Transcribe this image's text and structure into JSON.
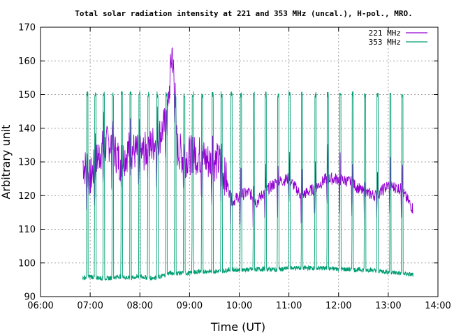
{
  "chart_data": {
    "type": "line",
    "title": "Total solar radiation intensity at 221 and 353 MHz (uncal.), H-pol., MRO.",
    "xlabel": "Time (UT)",
    "ylabel": "Arbitrary unit",
    "x_range_hours": [
      6,
      14
    ],
    "ylim": [
      90,
      170
    ],
    "x_ticks": [
      "06:00",
      "07:00",
      "08:00",
      "09:00",
      "10:00",
      "11:00",
      "12:00",
      "13:00",
      "14:00"
    ],
    "y_ticks": [
      "90",
      "100",
      "110",
      "120",
      "130",
      "140",
      "150",
      "160",
      "170"
    ],
    "grid": true,
    "legend_position": "top-right",
    "series": [
      {
        "name": "221 MHz",
        "color": "#9400d3",
        "x_hours": [
          6.85,
          7.0,
          7.2,
          7.4,
          7.6,
          7.8,
          8.0,
          8.2,
          8.4,
          8.55,
          8.65,
          8.75,
          8.9,
          9.0,
          9.2,
          9.4,
          9.6,
          9.75,
          9.85,
          10.0,
          10.2,
          10.35,
          10.5,
          10.75,
          11.0,
          11.25,
          11.5,
          11.75,
          12.0,
          12.25,
          12.5,
          12.75,
          13.0,
          13.25,
          13.5
        ],
        "values": [
          130,
          125,
          133,
          136,
          130,
          134,
          132,
          134,
          138,
          142,
          164,
          134,
          131,
          132,
          132,
          130,
          130,
          124,
          118,
          120,
          121,
          118,
          121,
          124,
          125,
          120,
          122,
          125,
          125,
          124,
          121,
          120,
          123,
          122,
          116
        ]
      },
      {
        "name": "353 MHz",
        "color": "#009e73",
        "x_hours": [
          6.85,
          7.0,
          7.2,
          7.4,
          7.6,
          7.8,
          8.0,
          8.2,
          8.4,
          8.6,
          8.8,
          9.0,
          9.2,
          9.4,
          9.6,
          9.8,
          10.0,
          10.2,
          10.5,
          10.8,
          11.0,
          11.3,
          11.6,
          12.0,
          12.3,
          12.6,
          12.9,
          13.2,
          13.5
        ],
        "values": [
          95.5,
          96,
          95.5,
          95.5,
          96,
          95.5,
          96,
          95.5,
          95.8,
          97,
          97,
          97,
          97.5,
          97.5,
          97.5,
          98,
          98,
          98,
          98.2,
          98,
          98.5,
          98.5,
          98.5,
          98.2,
          98,
          98,
          97.5,
          97,
          96.5
        ]
      }
    ],
    "spikes_353MHz_hours": [
      6.93,
      7.09,
      7.26,
      7.44,
      7.62,
      7.8,
      7.98,
      8.16,
      8.34,
      8.52,
      8.7,
      8.88,
      9.05,
      9.24,
      9.45,
      9.63,
      9.83,
      10.02,
      10.28,
      10.52,
      10.77,
      11.0,
      11.25,
      11.52,
      11.77,
      12.02,
      12.27,
      12.52,
      12.77,
      13.03,
      13.27
    ],
    "spike_peak_value": 151
  }
}
